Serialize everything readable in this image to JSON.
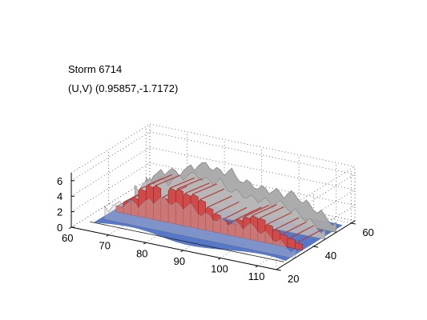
{
  "chart_data": {
    "type": "surface3d",
    "title_lines": [
      "Storm 6714",
      "(U,V) (0.95857,-1.7172)"
    ],
    "x_axis": {
      "range": [
        60,
        115
      ],
      "ticks": [
        60,
        70,
        80,
        90,
        100,
        110
      ]
    },
    "y_axis": {
      "range": [
        20,
        62
      ],
      "ticks": [
        20,
        40,
        60
      ]
    },
    "z_axis": {
      "range": [
        0,
        7
      ],
      "ticks": [
        0,
        2,
        4,
        6
      ]
    },
    "grid": true,
    "isosurfaces": [
      {
        "level": "outer",
        "color": "#a8a8a8"
      },
      {
        "level": "inner",
        "color": "#d04a4a"
      },
      {
        "level": "base",
        "color": "#3a5fbf"
      }
    ],
    "ridge_profile": {
      "x": [
        64,
        66,
        68,
        70,
        72,
        74,
        76,
        78,
        80,
        82,
        84,
        86,
        88,
        90,
        92,
        94,
        96,
        98,
        100,
        102,
        104,
        106,
        108,
        110,
        112,
        114
      ],
      "outer_top_km": [
        1.8,
        2.6,
        3.2,
        3.6,
        3.4,
        4.1,
        4.6,
        5.1,
        5.3,
        4.9,
        4.7,
        5.2,
        4.4,
        4.1,
        3.9,
        3.7,
        3.6,
        3.8,
        3.4,
        3.9,
        3.5,
        3.1,
        2.6,
        2.2,
        1.6,
        1.0
      ],
      "inner_top_km": [
        0.8,
        1.6,
        2.3,
        3.6,
        4.3,
        4.4,
        3.1,
        4.5,
        4.6,
        4.2,
        4.3,
        3.8,
        3.0,
        2.4,
        1.8,
        1.6,
        2.3,
        2.8,
        3.1,
        3.0,
        2.4,
        1.9,
        1.5,
        1.2,
        0.8,
        0.4
      ]
    }
  }
}
